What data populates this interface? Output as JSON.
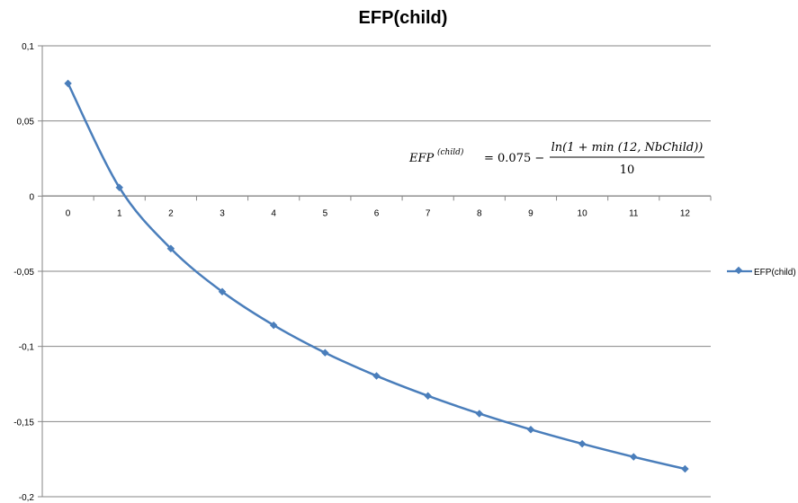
{
  "chart_data": {
    "type": "line",
    "title": "EFP(child)",
    "xlabel": "",
    "ylabel": "",
    "categories": [
      "0",
      "1",
      "2",
      "3",
      "4",
      "5",
      "6",
      "7",
      "8",
      "9",
      "10",
      "11",
      "12"
    ],
    "ylim": [
      -0.2,
      0.1
    ],
    "yticks": [
      0.1,
      0.05,
      0,
      -0.05,
      -0.1,
      -0.15,
      -0.2
    ],
    "ytick_labels": [
      "0,1",
      "0,05",
      "0",
      "-0,05",
      "-0,1",
      "-0,15",
      "-0,2"
    ],
    "grid": true,
    "legend": "right",
    "series": [
      {
        "name": "EFP(child)",
        "color": "#4a7ebb",
        "values": [
          0.075,
          0.0057,
          -0.0349,
          -0.0636,
          -0.0859,
          -0.1042,
          -0.1196,
          -0.1329,
          -0.1447,
          -0.1553,
          -0.1648,
          -0.1735,
          -0.1815
        ]
      }
    ],
    "annotation": {
      "lhs_base": "EFP",
      "lhs_sup": "(child)",
      "equals": "= 0.075 −",
      "numerator": "ln(1 + min (12,  NbChild))",
      "denominator": "10"
    }
  }
}
